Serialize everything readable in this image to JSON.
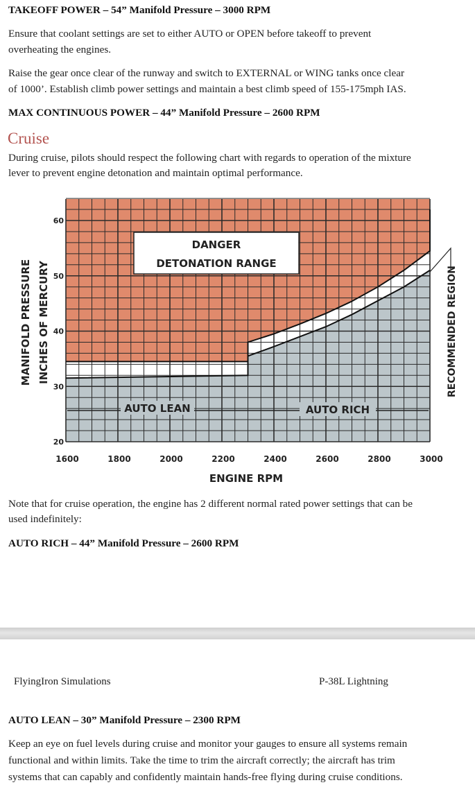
{
  "takeoff_heading": "TAKEOFF POWER – 54” Manifold Pressure – 3000 RPM",
  "takeoff_para": [
    "Ensure that coolant settings are set to either AUTO or OPEN before takeoff to prevent",
    "overheating the engines."
  ],
  "climb_para": [
    "Raise the gear once clear of the runway and switch to EXTERNAL or WING tanks once clear",
    "of 1000’. Establish climb power settings and maintain a best climb speed of 155-175mph IAS."
  ],
  "max_continuous_heading": "MAX CONTINUOUS POWER – 44” Manifold Pressure – 2600 RPM",
  "cruise_title": "Cruise",
  "cruise_para": [
    "During cruise, pilots should respect the following chart with regards to operation of the mixture",
    "lever to prevent engine detonation and maintain optimal performance."
  ],
  "note_para": [
    "Note that for cruise operation, the engine has 2 different normal rated power settings that can be",
    "used indefinitely:"
  ],
  "auto_rich_heading": "AUTO RICH – 44” Manifold Pressure – 2600 RPM",
  "footer": {
    "left": "FlyingIron Simulations",
    "right": "P-38L Lightning"
  },
  "auto_lean_heading": "AUTO LEAN – 30” Manifold Pressure – 2300 RPM",
  "auto_lean_para": [
    "Keep an eye on fuel levels during cruise and monitor your gauges to ensure all systems remain",
    "functional and within limits. Take the time to trim the aircraft correctly; the aircraft has trim",
    "systems that can capably and confidently maintain hands-free flying during cruise conditions."
  ],
  "colors": {
    "danger": "#e08a6c",
    "recommended": "#bcc6ca",
    "heading_accent": "#b35450"
  },
  "chart_data": {
    "type": "area",
    "xlabel": "ENGINE RPM",
    "ylabel": [
      "MANIFOLD PRESSURE",
      "INCHES OF MERCURY"
    ],
    "xlim": [
      1600,
      3000
    ],
    "ylim": [
      20,
      64
    ],
    "x_ticks": [
      1600,
      1800,
      2000,
      2200,
      2400,
      2600,
      2800,
      3000
    ],
    "y_ticks": [
      20,
      30,
      40,
      50,
      60
    ],
    "grid": true,
    "danger_label": [
      "DANGER",
      "DETONATION RANGE"
    ],
    "recommended_label": "RECOMMENDED REGION",
    "mixture_labels": [
      "AUTO LEAN",
      "AUTO RICH"
    ],
    "danger_lower_boundary": [
      [
        1600,
        34.5
      ],
      [
        2300,
        34.5
      ],
      [
        2300,
        38
      ],
      [
        2400,
        39.5
      ],
      [
        2500,
        41.3
      ],
      [
        2600,
        43.2
      ],
      [
        2700,
        45.4
      ],
      [
        2800,
        48
      ],
      [
        2900,
        51
      ],
      [
        3000,
        54.5
      ],
      [
        3000,
        62
      ]
    ],
    "recommended_upper_boundary": [
      [
        1600,
        31.5
      ],
      [
        2300,
        32
      ],
      [
        2300,
        35.5
      ],
      [
        2400,
        37.2
      ],
      [
        2500,
        39
      ],
      [
        2600,
        40.8
      ],
      [
        2700,
        43
      ],
      [
        2800,
        45.5
      ],
      [
        2900,
        48
      ],
      [
        3000,
        51
      ]
    ]
  }
}
